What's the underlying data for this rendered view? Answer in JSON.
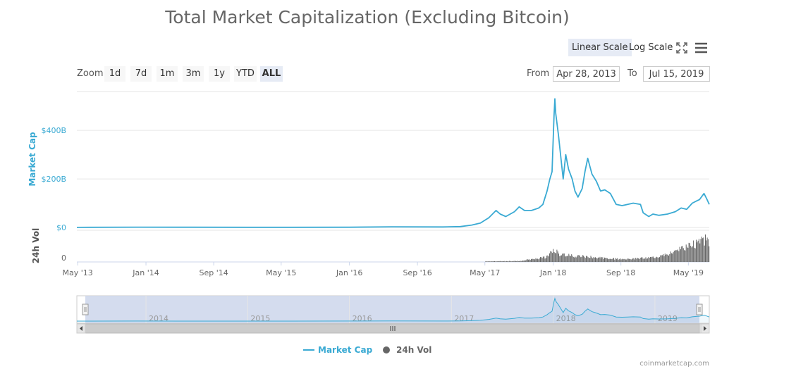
{
  "title": "Total Market Capitalization (Excluding Bitcoin)",
  "scale_buttons": {
    "linear": "Linear Scale",
    "log": "Log Scale"
  },
  "zoom": {
    "label": "Zoom",
    "buttons": [
      "1d",
      "7d",
      "1m",
      "3m",
      "1y",
      "YTD",
      "ALL"
    ],
    "active": "ALL"
  },
  "range": {
    "from_label": "From",
    "from_value": "Apr 28, 2013",
    "to_label": "To",
    "to_value": "Jul 15, 2019"
  },
  "credit": "coinmarketcap.com",
  "colors": {
    "market_cap": "#3aaad3",
    "volume": "#666666",
    "navigator_mask": "#ccd6eb"
  },
  "icons": {
    "fullscreen": "fullscreen-icon",
    "menu": "hamburger-menu-icon"
  },
  "chart_data": {
    "type": "area",
    "title": "Total Market Capitalization (Excluding Bitcoin)",
    "x_range": [
      "2013-04-28",
      "2019-07-15"
    ],
    "x_tick_labels": [
      "May '13",
      "Jan '14",
      "Sep '14",
      "May '15",
      "Jan '16",
      "Sep '16",
      "May '17",
      "Jan '18",
      "Sep '18",
      "May '19"
    ],
    "x_tick_dates": [
      "2013-05-01",
      "2014-01-01",
      "2014-09-01",
      "2015-05-01",
      "2016-01-01",
      "2016-09-01",
      "2017-05-01",
      "2018-01-01",
      "2018-09-01",
      "2019-05-01"
    ],
    "y_axis": {
      "label": "Market Cap",
      "ticks": [
        "$0",
        "$200B",
        "$400B"
      ],
      "tick_values": [
        0,
        200,
        400
      ],
      "unit": "billion USD",
      "range": [
        0,
        560
      ]
    },
    "volume_axis": {
      "label": "24h Vol",
      "ticks": [
        "0"
      ]
    },
    "grid": true,
    "legend_placement": "bottom-center",
    "series": [
      {
        "name": "Market Cap",
        "unit": "billion USD",
        "points": [
          [
            "2013-04-28",
            0.3
          ],
          [
            "2013-12-01",
            1.2
          ],
          [
            "2014-06-01",
            0.8
          ],
          [
            "2015-01-01",
            0.6
          ],
          [
            "2015-06-01",
            0.5
          ],
          [
            "2016-01-01",
            1.0
          ],
          [
            "2016-06-01",
            2.5
          ],
          [
            "2016-12-01",
            2.0
          ],
          [
            "2017-02-01",
            3.5
          ],
          [
            "2017-03-15",
            10
          ],
          [
            "2017-04-15",
            18
          ],
          [
            "2017-05-15",
            40
          ],
          [
            "2017-06-10",
            70
          ],
          [
            "2017-06-25",
            55
          ],
          [
            "2017-07-15",
            45
          ],
          [
            "2017-08-15",
            65
          ],
          [
            "2017-09-01",
            85
          ],
          [
            "2017-09-20",
            70
          ],
          [
            "2017-10-15",
            70
          ],
          [
            "2017-11-10",
            80
          ],
          [
            "2017-11-25",
            95
          ],
          [
            "2017-12-10",
            150
          ],
          [
            "2017-12-20",
            200
          ],
          [
            "2017-12-28",
            230
          ],
          [
            "2018-01-04",
            460
          ],
          [
            "2018-01-07",
            530
          ],
          [
            "2018-01-10",
            470
          ],
          [
            "2018-01-20",
            380
          ],
          [
            "2018-02-01",
            250
          ],
          [
            "2018-02-06",
            200
          ],
          [
            "2018-02-15",
            300
          ],
          [
            "2018-02-25",
            240
          ],
          [
            "2018-03-10",
            200
          ],
          [
            "2018-03-20",
            150
          ],
          [
            "2018-03-31",
            125
          ],
          [
            "2018-04-15",
            160
          ],
          [
            "2018-04-25",
            230
          ],
          [
            "2018-05-05",
            285
          ],
          [
            "2018-05-20",
            220
          ],
          [
            "2018-06-05",
            190
          ],
          [
            "2018-06-20",
            150
          ],
          [
            "2018-07-05",
            155
          ],
          [
            "2018-07-25",
            140
          ],
          [
            "2018-08-15",
            95
          ],
          [
            "2018-09-05",
            90
          ],
          [
            "2018-09-25",
            95
          ],
          [
            "2018-10-15",
            100
          ],
          [
            "2018-11-10",
            95
          ],
          [
            "2018-11-20",
            60
          ],
          [
            "2018-12-10",
            45
          ],
          [
            "2018-12-25",
            55
          ],
          [
            "2019-01-15",
            50
          ],
          [
            "2019-02-15",
            55
          ],
          [
            "2019-03-15",
            65
          ],
          [
            "2019-04-05",
            80
          ],
          [
            "2019-04-25",
            75
          ],
          [
            "2019-05-15",
            100
          ],
          [
            "2019-06-01",
            110
          ],
          [
            "2019-06-10",
            115
          ],
          [
            "2019-06-26",
            140
          ],
          [
            "2019-07-05",
            120
          ],
          [
            "2019-07-15",
            95
          ]
        ]
      },
      {
        "name": "24h Vol",
        "unit": "relative",
        "points": [
          [
            "2017-05-01",
            0.02
          ],
          [
            "2017-09-01",
            0.04
          ],
          [
            "2017-12-01",
            0.18
          ],
          [
            "2017-12-20",
            0.35
          ],
          [
            "2018-01-07",
            0.5
          ],
          [
            "2018-01-25",
            0.3
          ],
          [
            "2018-03-01",
            0.25
          ],
          [
            "2018-05-01",
            0.22
          ],
          [
            "2018-07-01",
            0.15
          ],
          [
            "2018-09-01",
            0.12
          ],
          [
            "2018-11-01",
            0.14
          ],
          [
            "2019-01-01",
            0.18
          ],
          [
            "2019-03-01",
            0.35
          ],
          [
            "2019-04-15",
            0.55
          ],
          [
            "2019-05-20",
            0.7
          ],
          [
            "2019-06-26",
            0.95
          ],
          [
            "2019-07-15",
            0.65
          ]
        ]
      }
    ],
    "navigator": {
      "year_labels": [
        "2014",
        "2015",
        "2016",
        "2017",
        "2018",
        "2019"
      ],
      "year_dates": [
        "2014-01-01",
        "2015-01-01",
        "2016-01-01",
        "2017-01-01",
        "2018-01-01",
        "2019-01-01"
      ]
    }
  }
}
